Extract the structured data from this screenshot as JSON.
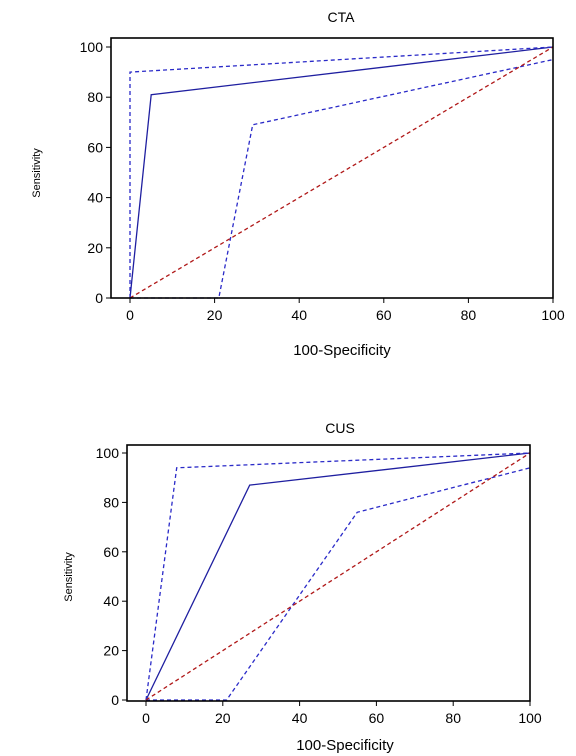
{
  "chart_data": [
    {
      "type": "line",
      "title": "CTA",
      "xlabel": "100-Specificity",
      "ylabel": "Sensitivity",
      "xlim": [
        0,
        100
      ],
      "ylim": [
        0,
        100
      ],
      "xticks": [
        0,
        20,
        40,
        60,
        80,
        100
      ],
      "yticks": [
        0,
        20,
        40,
        60,
        80,
        100
      ],
      "series": [
        {
          "role": "roc",
          "color": "#1f1fa0",
          "style": "solid",
          "points": [
            [
              0,
              0
            ],
            [
              5,
              81
            ],
            [
              100,
              100
            ]
          ]
        },
        {
          "role": "upper-ci",
          "color": "#2a2ac8",
          "style": "dashed",
          "points": [
            [
              0,
              0
            ],
            [
              0,
              90
            ],
            [
              100,
              100
            ]
          ]
        },
        {
          "role": "lower-ci",
          "color": "#2a2ac8",
          "style": "dashed",
          "points": [
            [
              0,
              0
            ],
            [
              21,
              0
            ],
            [
              29,
              69
            ],
            [
              100,
              95
            ]
          ]
        },
        {
          "role": "reference",
          "color": "#b01818",
          "style": "dashed",
          "points": [
            [
              0,
              0
            ],
            [
              100,
              100
            ]
          ]
        }
      ]
    },
    {
      "type": "line",
      "title": "CUS",
      "xlabel": "100-Specificity",
      "ylabel": "Sensitivity",
      "xlim": [
        0,
        100
      ],
      "ylim": [
        0,
        100
      ],
      "xticks": [
        0,
        20,
        40,
        60,
        80,
        100
      ],
      "yticks": [
        0,
        20,
        40,
        60,
        80,
        100
      ],
      "series": [
        {
          "role": "roc",
          "color": "#1f1fa0",
          "style": "solid",
          "points": [
            [
              0,
              0
            ],
            [
              27,
              87
            ],
            [
              100,
              100
            ]
          ]
        },
        {
          "role": "upper-ci",
          "color": "#2a2ac8",
          "style": "dashed",
          "points": [
            [
              0,
              0
            ],
            [
              8,
              94
            ],
            [
              100,
              100
            ]
          ]
        },
        {
          "role": "lower-ci",
          "color": "#2a2ac8",
          "style": "dashed",
          "points": [
            [
              0,
              0
            ],
            [
              21,
              0
            ],
            [
              55,
              76
            ],
            [
              100,
              94
            ]
          ]
        },
        {
          "role": "reference",
          "color": "#b01818",
          "style": "dashed",
          "points": [
            [
              0,
              0
            ],
            [
              100,
              100
            ]
          ]
        }
      ]
    }
  ]
}
